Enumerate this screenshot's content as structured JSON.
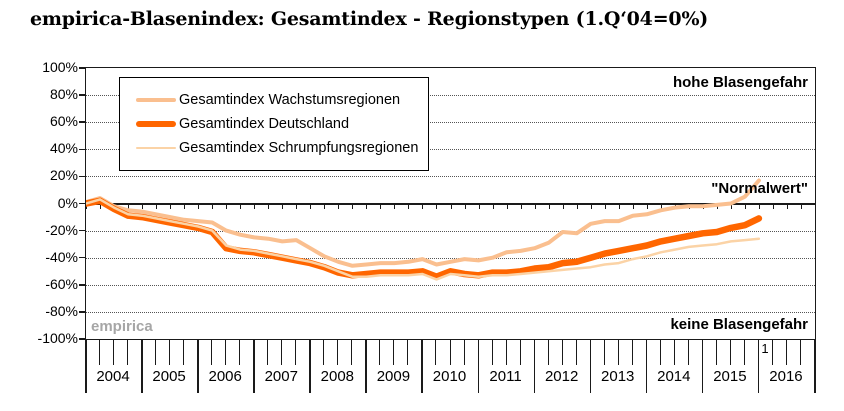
{
  "title": "empirica-Blasenindex: Gesamtindex - Regionstypen (1.Q‘04=0%)",
  "watermark": "empirica",
  "annotations": {
    "top_right": "hohe Blasengefahr",
    "normal": "\"Normalwert\"",
    "bottom_right": "keine Blasengefahr"
  },
  "quarter_marker": "1",
  "colors": {
    "wachstumsregionen": "#FABF8F",
    "deutschland": "#FF6600",
    "schrumpfungsregionen": "#FBD3A6",
    "axis": "#1a1a1a",
    "watermark_gray": "#a6a6a6"
  },
  "chart_data": {
    "type": "line",
    "title": "empirica-Blasenindex: Gesamtindex - Regionstypen (1.Q‘04=0%)",
    "x_unit": "quarter",
    "x_start": "2004 Q1",
    "x_end": "2016 Q1",
    "quarters_per_year": 4,
    "years": [
      "2004",
      "2005",
      "2006",
      "2007",
      "2008",
      "2009",
      "2010",
      "2011",
      "2012",
      "2013",
      "2014",
      "2015",
      "2016"
    ],
    "ylim": [
      -100,
      100
    ],
    "ytick_step": 20,
    "yticks": [
      "100%",
      "80%",
      "60%",
      "40%",
      "20%",
      "0%",
      "-20%",
      "-40%",
      "-60%",
      "-80%",
      "-100%"
    ],
    "grid": "dotted horizontal at every 20%, solid line at 0%",
    "legend_position": "top-left box",
    "series": [
      {
        "name": "Gesamtindex Wachstumsregionen",
        "color": "#FABF8F",
        "stroke_width": 4,
        "values": [
          1,
          4,
          -2,
          -5,
          -6,
          -8,
          -10,
          -12,
          -13,
          -14,
          -20,
          -23,
          -25,
          -26,
          -28,
          -27,
          -33,
          -39,
          -43,
          -46,
          -45,
          -44,
          -44,
          -43,
          -41,
          -45,
          -43,
          -41,
          -42,
          -40,
          -36,
          -35,
          -33,
          -29,
          -21,
          -22,
          -15,
          -13,
          -13,
          -9,
          -8,
          -5,
          -3,
          -2,
          -2,
          -1,
          0,
          5,
          17
        ]
      },
      {
        "name": "Gesamtindex Deutschland",
        "color": "#FF6600",
        "stroke_width": 6.5,
        "values": [
          0,
          2,
          -4,
          -9,
          -10,
          -12,
          -14,
          -16,
          -18,
          -21,
          -33,
          -35,
          -36,
          -38,
          -40,
          -42,
          -44,
          -47,
          -51,
          -53,
          -52,
          -51,
          -51,
          -51,
          -50,
          -54,
          -50,
          -52,
          -53,
          -51,
          -51,
          -50,
          -48,
          -47,
          -44,
          -43,
          -40,
          -37,
          -35,
          -33,
          -31,
          -28,
          -26,
          -24,
          -22,
          -21,
          -18,
          -16,
          -11
        ]
      },
      {
        "name": "Gesamtindex Schrumpfungsregionen",
        "color": "#FBD3A6",
        "stroke_width": 2.5,
        "values": [
          0,
          3,
          -3,
          -8,
          -9,
          -11,
          -13,
          -15,
          -17,
          -20,
          -31,
          -34,
          -35,
          -37,
          -39,
          -41,
          -43,
          -46,
          -50,
          -54,
          -54,
          -53,
          -53,
          -53,
          -52,
          -56,
          -52,
          -53,
          -54,
          -53,
          -53,
          -52,
          -51,
          -50,
          -49,
          -48,
          -47,
          -45,
          -44,
          -41,
          -39,
          -36,
          -34,
          -32,
          -31,
          -30,
          -28,
          -27,
          -26
        ]
      }
    ]
  }
}
